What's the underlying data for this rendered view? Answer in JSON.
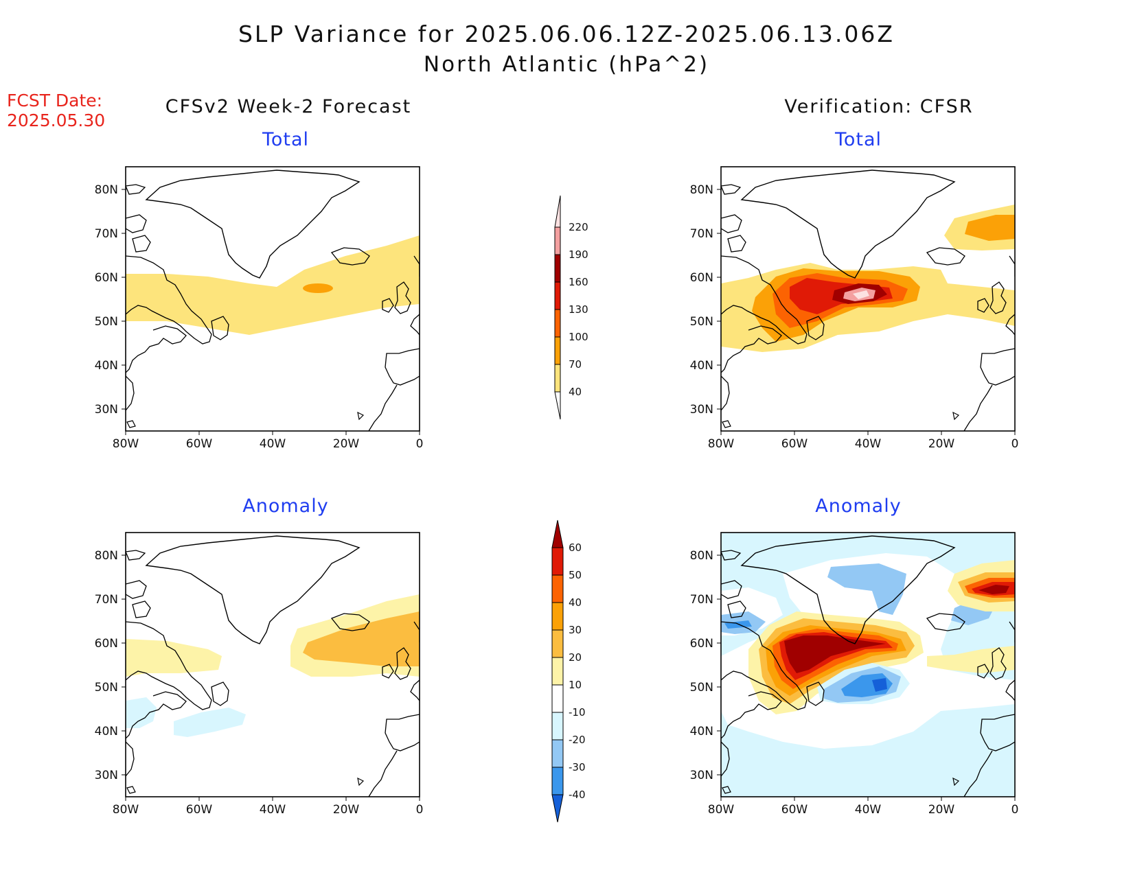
{
  "title_line1": "SLP Variance for 2025.06.06.12Z-2025.06.13.06Z",
  "title_line2": "North Atlantic (hPa^2)",
  "fcst_label": "FCST Date:",
  "fcst_date": "2025.05.30",
  "columns": {
    "forecast": "CFSv2 Week-2 Forecast",
    "verification": "Verification: CFSR"
  },
  "panels": {
    "forecast_total": "Total",
    "verification_total": "Total",
    "forecast_anomaly": "Anomaly",
    "verification_anomaly": "Anomaly"
  },
  "axes": {
    "lat_labels": [
      "80N",
      "70N",
      "60N",
      "50N",
      "40N",
      "30N"
    ],
    "lon_labels": [
      "80W",
      "60W",
      "40W",
      "20W",
      "0"
    ],
    "lat_range": [
      25,
      85
    ],
    "lon_range": [
      -80,
      0
    ]
  },
  "colorbars": {
    "total": {
      "levels": [
        "40",
        "70",
        "100",
        "130",
        "160",
        "190",
        "220"
      ],
      "colors": [
        "#fde47c",
        "#fba107",
        "#fc6302",
        "#e01a06",
        "#a00000",
        "#f4a0a0",
        "#fce2e2"
      ]
    },
    "anomaly": {
      "levels": [
        "60",
        "50",
        "40",
        "30",
        "20",
        "10",
        "-10",
        "-20",
        "-30",
        "-40"
      ],
      "colors": [
        "#a00000",
        "#e01a06",
        "#fc6302",
        "#fba107",
        "#fbbd40",
        "#fdf3a8",
        "#ffffff",
        "#d8f6fe",
        "#93c8f4",
        "#3b97ec",
        "#1560d8"
      ]
    }
  },
  "colors": {
    "fcst_text": "#e8241c",
    "panel_title": "#1f3df0"
  }
}
